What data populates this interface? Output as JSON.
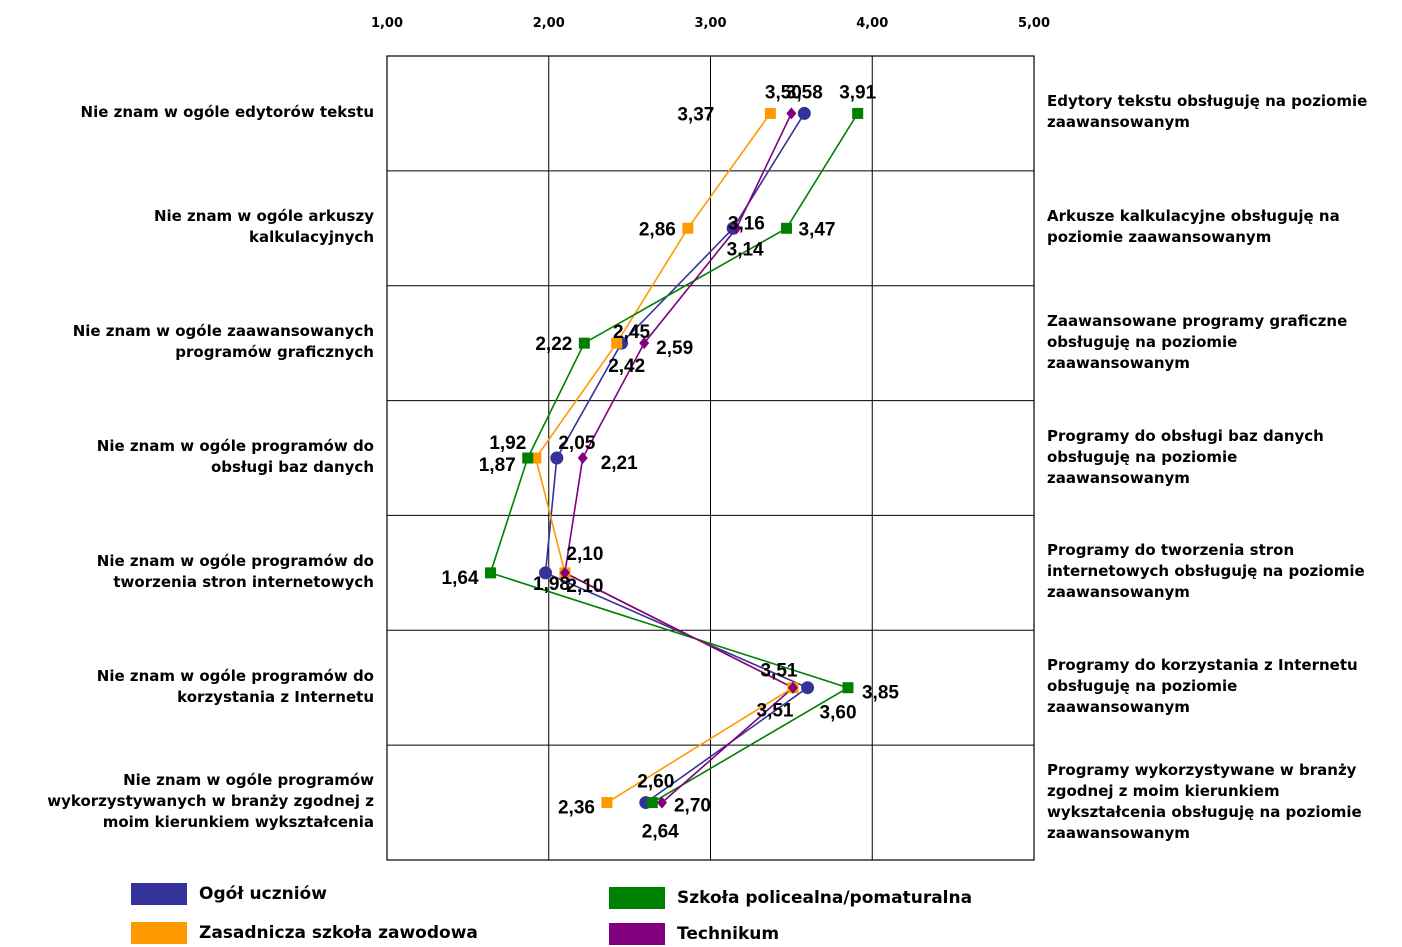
{
  "chart_data": {
    "type": "line",
    "orientation": "horizontal",
    "x_ticks": [
      "1,00",
      "2,00",
      "3,00",
      "4,00",
      "5,00"
    ],
    "xlim": [
      1,
      5
    ],
    "grid": true,
    "legend_position": "bottom",
    "categories_left": [
      "Nie znam w ogóle edytorów tekstu",
      "Nie znam w ogóle arkuszy kalkulacyjnych",
      "Nie znam w ogóle zaawansowanych programów graficznych",
      "Nie znam w ogóle programów do obsługi baz danych",
      "Nie znam w ogóle programów do tworzenia stron internetowych",
      "Nie znam w ogóle programów do korzystania z Internetu",
      "Nie znam w ogóle programów wykorzystywanych w branży zgodnej z moim kierunkiem wykształcenia"
    ],
    "categories_right": [
      "Edytory tekstu obsługuję na poziomie zaawansowanym",
      "Arkusze kalkulacyjne obsługuję na poziomie zaawansowanym",
      "Zaawansowane programy graficzne obsługuję na poziomie zaawansowanym",
      "Programy do obsługi baz danych obsługuję na poziomie zaawansowanym",
      "Programy do tworzenia stron internetowych obsługuję na poziomie zaawansowanym",
      "Programy do korzystania z Internetu obsługuję na poziomie zaawansowanym",
      "Programy wykorzystywane w branży zgodnej z moim kierunkiem wykształcenia obsługuję na poziomie zaawansowanym"
    ],
    "series": [
      {
        "name": "Ogół uczniów",
        "color": "#333399",
        "marker": "circle",
        "values": [
          3.58,
          3.14,
          2.45,
          2.05,
          1.98,
          3.6,
          2.6
        ],
        "labels": [
          "3,58",
          "3,14",
          "2,45",
          "2,05",
          "1,98",
          "3,60",
          "2,60"
        ]
      },
      {
        "name": "Zasadnicza szkoła zawodowa",
        "color": "#FF9900",
        "marker": "square",
        "values": [
          3.37,
          2.86,
          2.42,
          1.92,
          2.1,
          3.51,
          2.36
        ],
        "labels": [
          "3,37",
          "2,86",
          "2,42",
          "1,92",
          "2,10",
          "3,51",
          "2,36"
        ]
      },
      {
        "name": "Szkoła policealna/pomaturalna",
        "color": "#008000",
        "marker": "square",
        "values": [
          3.91,
          3.47,
          2.22,
          1.87,
          1.64,
          3.85,
          2.64
        ],
        "labels": [
          "3,91",
          "3,47",
          "2,22",
          "1,87",
          "1,64",
          "3,85",
          "2,64"
        ]
      },
      {
        "name": "Technikum",
        "color": "#800080",
        "marker": "diamond",
        "values": [
          3.5,
          3.16,
          2.59,
          2.21,
          2.1,
          3.51,
          2.7
        ],
        "labels": [
          "3,50",
          "3,16",
          "2,59",
          "2,21",
          "2,10",
          "3,51",
          "2,70"
        ]
      }
    ]
  }
}
